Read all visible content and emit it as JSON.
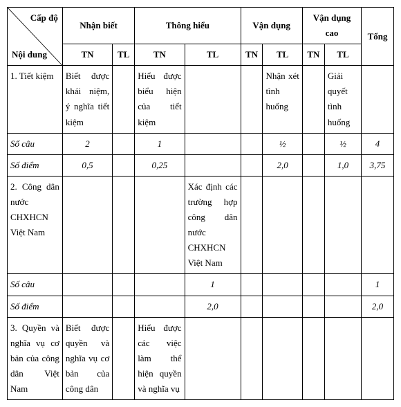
{
  "header": {
    "diag_top": "Cấp độ",
    "diag_bot": "Nội dung",
    "groups": [
      "Nhận biết",
      "Thông hiểu",
      "Vận dụng",
      "Vận dụng cao"
    ],
    "tn": "TN",
    "tl": "TL",
    "total": "Tổng"
  },
  "rows": [
    {
      "label": "1. Tiết kiệm",
      "cells": [
        "Biết được khái niệm, ý nghĩa tiết kiệm",
        "",
        "Hiểu được biểu hiện của tiết kiệm",
        "",
        "",
        "Nhận xét tình huống",
        "",
        "Giải quyết tình huống",
        ""
      ]
    },
    {
      "label": "Số câu",
      "italic": true,
      "cells": [
        "2",
        "",
        "1",
        "",
        "",
        "½",
        "",
        "½",
        "4"
      ]
    },
    {
      "label": "Số điểm",
      "italic": true,
      "cells": [
        "0,5",
        "",
        "0,25",
        "",
        "",
        "2,0",
        "",
        "1,0",
        "3,75"
      ]
    },
    {
      "label": "2. Công dân nước CHXHCN Việt Nam",
      "cells": [
        "",
        "",
        "",
        "Xác định các trường hợp công dân nước CHXHCN Việt Nam",
        "",
        "",
        "",
        "",
        ""
      ]
    },
    {
      "label": "Số câu",
      "italic": true,
      "cells": [
        "",
        "",
        "",
        "1",
        "",
        "",
        "",
        "",
        "1"
      ]
    },
    {
      "label": "Số điểm",
      "italic": true,
      "cells": [
        "",
        "",
        "",
        "2,0",
        "",
        "",
        "",
        "",
        "2,0"
      ]
    },
    {
      "label": "3. Quyền và nghĩa vụ cơ bản của công dân Việt Nam",
      "cells": [
        "Biết được quyền và nghĩa vụ cơ bản của công dân",
        "",
        "Hiểu được các việc làm thể hiện quyền và nghĩa vụ",
        "",
        "",
        "",
        "",
        "",
        ""
      ]
    }
  ]
}
